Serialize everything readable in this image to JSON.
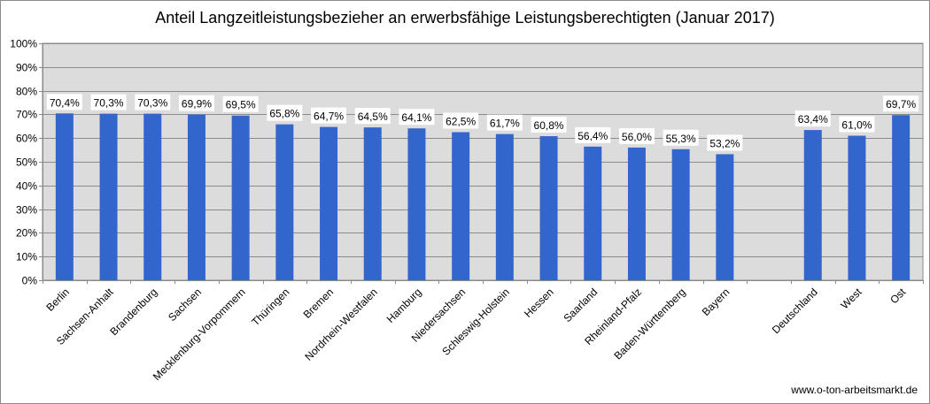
{
  "chart_data": {
    "type": "bar",
    "title": "Anteil Langzeitleistungsbezieher an erwerbsfähige Leistungsberechtigten (Januar 2017)",
    "xlabel": "",
    "ylabel": "",
    "ylim": [
      0,
      100
    ],
    "yticks": [
      "0%",
      "10%",
      "20%",
      "30%",
      "40%",
      "50%",
      "60%",
      "70%",
      "80%",
      "90%",
      "100%"
    ],
    "grid": true,
    "categories": [
      "Berlin",
      "Sachsen-Anhalt",
      "Brandenburg",
      "Sachsen",
      "Mecklenburg-Vorpommern",
      "Thüringen",
      "Bremen",
      "Nordrhein-Westfalen",
      "Hamburg",
      "Niedersachsen",
      "Schleswig-Holstein",
      "Hessen",
      "Saarland",
      "Rheinland-Pfalz",
      "Baden-Württemberg",
      "Bayern",
      "",
      "Deutschland",
      "West",
      "Ost"
    ],
    "values": [
      70.4,
      70.3,
      70.3,
      69.9,
      69.5,
      65.8,
      64.7,
      64.5,
      64.1,
      62.5,
      61.7,
      60.8,
      56.4,
      56.0,
      55.3,
      53.2,
      null,
      63.4,
      61.0,
      69.7
    ],
    "labels": [
      "70,4%",
      "70,3%",
      "70,3%",
      "69,9%",
      "69,5%",
      "65,8%",
      "64,7%",
      "64,5%",
      "64,1%",
      "62,5%",
      "61,7%",
      "60,8%",
      "56,4%",
      "56,0%",
      "55,3%",
      "53,2%",
      "",
      "63,4%",
      "61,0%",
      "69,7%"
    ],
    "colors": {
      "bar": "#3366cc",
      "plot_bg": "#dcdcdc",
      "grid": "#8a8a8a"
    }
  },
  "footer": {
    "source": "www.o-ton-arbeitsmarkt.de"
  }
}
